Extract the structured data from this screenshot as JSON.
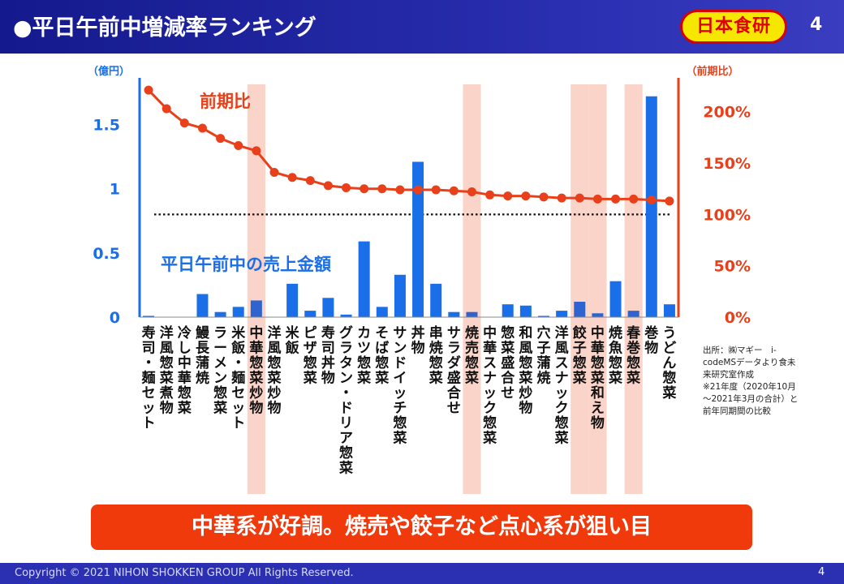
{
  "header": {
    "title": "●平日午前中増減率ランキング",
    "logo_text": "日本食研",
    "page_number": "4"
  },
  "footer": {
    "copyright": "Copyright © 2021 NIHON SHOKKEN GROUP All Rights Reserved.",
    "page_number": "4"
  },
  "banner": {
    "text": "中華系が好調。焼売や餃子など点心系が狙い目"
  },
  "source_note": {
    "lines": [
      "出所：㈱マギー　i-",
      "codeMSデータより食未",
      "来研究室作成",
      "※21年度（2020年10月",
      "～2021年3月の合計）と",
      "前年同期間の比較"
    ]
  },
  "colors": {
    "bar": "#1a6fe8",
    "bar_highlighted": "#2f63cf",
    "line": "#e8401a",
    "highlight_band": "#fad4c8",
    "left_axis": "#1a6fe8",
    "right_axis": "#e8401a",
    "header_bg": "#2b2fb2",
    "banner_bg": "#f03a0c"
  },
  "chart_data": {
    "type": "bar+line",
    "categories": [
      "寿司・麺セット",
      "洋風惣菜煮物",
      "冷し中華惣菜",
      "鰻長蒲焼",
      "ラーメン惣菜",
      "米飯・麺セット",
      "中華惣菜炒物",
      "洋風惣菜炒物",
      "米飯",
      "ピザ惣菜",
      "寿司丼物",
      "グラタン・ドリア惣菜",
      "カツ惣菜",
      "そば惣菜",
      "サンドイッチ惣菜",
      "丼物",
      "串焼惣菜",
      "サラダ盛合せ",
      "焼売惣菜",
      "中華スナック惣菜",
      "惣菜盛合せ",
      "和風惣菜炒物",
      "穴子蒲焼",
      "洋風スナック惣菜",
      "餃子惣菜",
      "中華惣菜和え物",
      "焼魚惣菜",
      "春巻惣菜",
      "巻物",
      "うどん惣菜"
    ],
    "highlighted": [
      "中華惣菜炒物",
      "焼売惣菜",
      "餃子惣菜",
      "中華惣菜和え物",
      "春巻惣菜"
    ],
    "series": [
      {
        "name": "平日午前中の売上金額",
        "axis": "left",
        "type": "bar",
        "values": [
          0.01,
          0,
          0,
          0.18,
          0.04,
          0.08,
          0.13,
          0,
          0.26,
          0.05,
          0.15,
          0.02,
          0.59,
          0.08,
          0.33,
          1.21,
          0.26,
          0.04,
          0.04,
          0,
          0.1,
          0.09,
          0.01,
          0.05,
          0.12,
          0.03,
          0.28,
          0.05,
          1.72,
          0.1
        ]
      },
      {
        "name": "前期比",
        "axis": "right",
        "type": "line",
        "values": [
          221,
          203,
          189,
          184,
          174,
          167,
          162,
          141,
          136,
          133,
          128,
          126,
          125,
          125,
          124,
          124,
          124,
          123,
          122,
          119,
          118,
          118,
          117,
          116,
          116,
          115,
          115,
          115,
          114,
          113
        ]
      }
    ],
    "left_axis": {
      "label": "（億円）",
      "ticks": [
        "0",
        "0.5",
        "1",
        "1.5"
      ],
      "tick_values": [
        0,
        0.5,
        1,
        1.5
      ],
      "ylim": [
        0,
        1.75
      ]
    },
    "right_axis": {
      "label": "（前期比）",
      "ticks": [
        "0%",
        "50%",
        "100%",
        "150%",
        "200%"
      ],
      "tick_values": [
        0,
        50,
        100,
        150,
        200
      ],
      "ylim": [
        0,
        218.75
      ]
    },
    "reference_line": {
      "value": 100,
      "axis": "right",
      "style": "dotted"
    },
    "annotations": {
      "line_label": "前期比",
      "bar_label": "平日午前中の売上金額"
    }
  }
}
